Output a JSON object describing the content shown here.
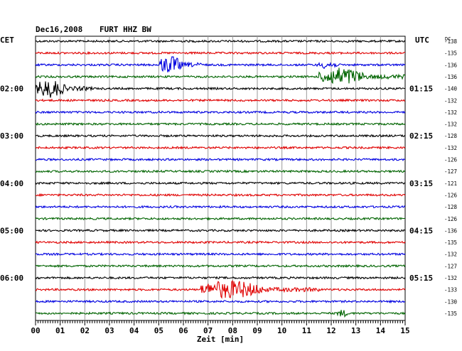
{
  "header": {
    "date": "Dec16,2008",
    "station": "FURT HHZ BW"
  },
  "left_axis_label": "CET",
  "right_axis_label": "UTC",
  "dc_header": "DC",
  "chart_data": {
    "type": "line",
    "title": "Dec16,2008   FURT HHZ BW",
    "xlabel": "Zeit [min]",
    "xlim": [
      0,
      15
    ],
    "x_ticks": [
      "00",
      "01",
      "02",
      "03",
      "04",
      "05",
      "06",
      "07",
      "08",
      "09",
      "10",
      "11",
      "12",
      "13",
      "14",
      "15"
    ],
    "left_hour_labels": [
      "02:00",
      "03:00",
      "04:00",
      "05:00",
      "06:00"
    ],
    "right_hour_labels": [
      "01:15",
      "02:15",
      "03:15",
      "04:15",
      "05:15"
    ],
    "dc_offsets": [
      -138,
      -135,
      -136,
      -136,
      -140,
      -132,
      -132,
      -132,
      -128,
      -132,
      -126,
      -127,
      -121,
      -126,
      -128,
      -126,
      -136,
      -135,
      -132,
      -127,
      -132,
      -133,
      -130,
      -135
    ],
    "trace_colors": [
      "#000000",
      "#e00000",
      "#0000e0",
      "#006400"
    ],
    "events": [
      {
        "trace": 2,
        "start_min": 5.0,
        "end_min": 6.8,
        "amplitude": "large"
      },
      {
        "trace": 2,
        "start_min": 11.4,
        "end_min": 12.3,
        "amplitude": "small"
      },
      {
        "trace": 3,
        "start_min": 11.5,
        "end_min": 15.0,
        "amplitude": "large"
      },
      {
        "trace": 4,
        "start_min": 0.0,
        "end_min": 2.3,
        "amplitude": "large"
      },
      {
        "trace": 21,
        "start_min": 6.7,
        "end_min": 11.5,
        "amplitude": "large"
      },
      {
        "trace": 23,
        "start_min": 12.2,
        "end_min": 12.7,
        "amplitude": "small"
      }
    ]
  }
}
